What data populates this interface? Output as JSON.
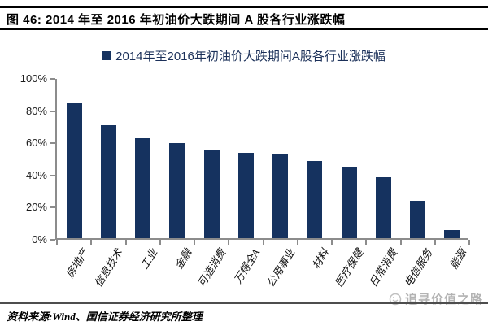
{
  "header": {
    "title": "图 46: 2014 年至 2016 年初油价大跌期间 A 股各行业涨跌幅"
  },
  "chart_data": {
    "type": "bar",
    "legend": "2014年至2016年初油价大跌期间A股各行业涨跌幅",
    "legend_position": "top-center",
    "categories": [
      "房地产",
      "信息技术",
      "工业",
      "金融",
      "可选消费",
      "万得全A",
      "公用事业",
      "材料",
      "医疗保健",
      "日常消费",
      "电信服务",
      "能源"
    ],
    "values": [
      84,
      70,
      62,
      59,
      55,
      53,
      52,
      48,
      44,
      38,
      23,
      5
    ],
    "unit": "%",
    "ylim": [
      0,
      100
    ],
    "yticks": [
      "0%",
      "20%",
      "40%",
      "60%",
      "80%",
      "100%"
    ],
    "grid": false,
    "bar_color": "#15325f",
    "axis_color": "#8c8c8c",
    "legend_text_color": "#1b3059"
  },
  "footer": {
    "source": "资料来源:Wind、国信证券经济研究所整理",
    "watermark": "追寻价值之路",
    "watermark_color": "#b3b3b3"
  }
}
